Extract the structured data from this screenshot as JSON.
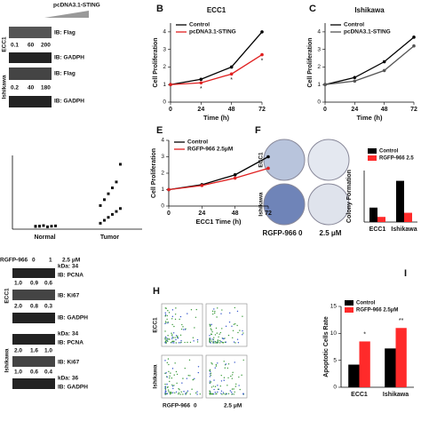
{
  "panels": [
    "B",
    "C",
    "E",
    "F",
    "H",
    "I"
  ],
  "blots": {
    "a": {
      "construct": "pcDNA3.1-STING",
      "rows": [
        "IB: Flag",
        "IB: GADPH",
        "IB: Flag",
        "IB: GADPH"
      ],
      "nums1": [
        "0.1",
        "60",
        "200"
      ],
      "nums2": [
        "0.2",
        "40",
        "180"
      ],
      "lines": [
        "ECC1",
        "Ishikawa"
      ]
    },
    "g": {
      "treat": "RGFP-966",
      "doses": [
        "0",
        "1",
        "2.5 μM"
      ],
      "kda": [
        "kDa: 34",
        "kDa: 34",
        "kDa: 36"
      ],
      "rows": [
        "IB: PCNA",
        "IB: Ki67",
        "IB: GADPH",
        "IB: PCNA",
        "IB: Ki67",
        "IB: GADPH"
      ],
      "nums": [
        [
          "1.0",
          "0.9",
          "0.6"
        ],
        [
          "2.0",
          "0.8",
          "0.3"
        ],
        [
          "2.0",
          "1.6",
          "1.0"
        ],
        [
          "1.0",
          "0.6",
          "0.4"
        ]
      ],
      "lines": [
        "ECC1",
        "Ishikawa"
      ]
    }
  },
  "images": {
    "f_rows": [
      "ECC1",
      "Ishikawa"
    ],
    "f_cols": [
      "RGFP-966 0",
      "2.5 μM"
    ],
    "h_rows": [
      "ECC1",
      "Ishikawa"
    ],
    "h_treat": "RGFP-966",
    "h_cols": [
      "0",
      "2.5 μM"
    ]
  },
  "chart_data": [
    {
      "type": "line",
      "title": "ECC1",
      "xlabel": "Time (h)",
      "ylabel": "Cell Proliferation",
      "x": [
        0,
        24,
        48,
        72
      ],
      "xlim": [
        0,
        72
      ],
      "xticks": [
        0,
        24,
        48,
        72
      ],
      "ylim": [
        0,
        4.5
      ],
      "yticks": [
        0,
        1,
        2,
        3,
        4
      ],
      "series": [
        {
          "name": "Control",
          "color": "#000000",
          "values": [
            1,
            1.3,
            2.0,
            4.0
          ]
        },
        {
          "name": "pcDNA3.1-STING",
          "color": "#e02020",
          "values": [
            1,
            1.1,
            1.6,
            2.7
          ]
        }
      ],
      "annotations": [
        {
          "text": "*",
          "x": 24
        },
        {
          "text": "*",
          "x": 48
        },
        {
          "text": "*",
          "x": 72
        }
      ]
    },
    {
      "type": "line",
      "title": "Ishikawa",
      "xlabel": "Time (h)",
      "ylabel": "Cell Proliferation",
      "x": [
        0,
        24,
        48,
        72
      ],
      "xlim": [
        0,
        72
      ],
      "xticks": [
        0,
        24,
        48,
        72
      ],
      "ylim": [
        0,
        4.5
      ],
      "yticks": [
        0,
        1,
        2,
        3,
        4
      ],
      "series": [
        {
          "name": "Control",
          "color": "#000000",
          "values": [
            1,
            1.4,
            2.3,
            3.7
          ]
        },
        {
          "name": "pcDNA3.1-STING",
          "color": "#555555",
          "values": [
            1,
            1.2,
            1.8,
            3.2
          ]
        }
      ]
    },
    {
      "type": "line",
      "xlabel": "ECC1 Time (h)",
      "ylabel": "Cell Proliferation",
      "x": [
        0,
        24,
        48,
        72
      ],
      "xlim": [
        0,
        72
      ],
      "xticks": [
        0,
        24,
        48,
        72
      ],
      "ylim": [
        0,
        4
      ],
      "yticks": [
        0,
        1,
        2,
        3,
        4
      ],
      "series": [
        {
          "name": "Control",
          "color": "#000000",
          "values": [
            1,
            1.3,
            1.9,
            3.0
          ]
        },
        {
          "name": "RGFP-966 2.5μM",
          "color": "#e02020",
          "values": [
            1,
            1.25,
            1.7,
            2.3
          ]
        }
      ]
    },
    {
      "type": "dot",
      "categories": [
        "Normal",
        "Tumor"
      ],
      "ylim": [
        0,
        25
      ],
      "points": [
        [
          1,
          1,
          1.2,
          0.8,
          1,
          1.1,
          0.9,
          1
        ],
        [
          2,
          3,
          4,
          5,
          6,
          7,
          8,
          10,
          12,
          14,
          16,
          22
        ]
      ]
    },
    {
      "type": "bar",
      "ylabel": "Colony Formation",
      "categories": [
        "ECC1",
        "Ishikawa"
      ],
      "ylim": [
        0,
        100
      ],
      "series": [
        {
          "name": "Control",
          "color": "#000000",
          "values": [
            28,
            80
          ]
        },
        {
          "name": "RGFP-966 2.5",
          "color": "#ff2a2a",
          "values": [
            10,
            18
          ]
        }
      ]
    },
    {
      "type": "bar",
      "ylabel": "Apoptotic Cells Rate",
      "categories": [
        "ECC1",
        "Ishikawa"
      ],
      "ylim": [
        0,
        15
      ],
      "yticks": [
        0,
        5,
        10,
        15
      ],
      "series": [
        {
          "name": "Control",
          "color": "#000000",
          "values": [
            4.2,
            7.2
          ]
        },
        {
          "name": "RGFP-966 2.5μM",
          "color": "#ff2a2a",
          "values": [
            8.5,
            11.0
          ]
        }
      ],
      "annotations": [
        {
          "text": "*",
          "category": "ECC1"
        },
        {
          "text": "**",
          "category": "Ishikawa"
        }
      ]
    }
  ]
}
